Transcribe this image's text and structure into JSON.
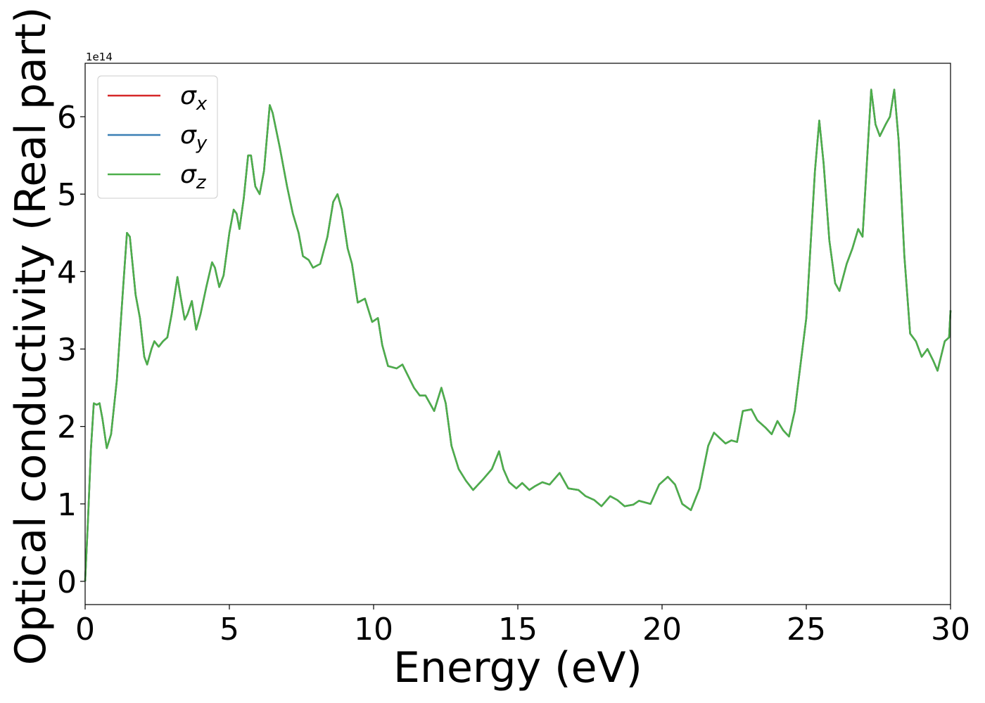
{
  "chart_data": {
    "type": "line",
    "xlabel": "Energy (eV)",
    "ylabel": "Optical conductivity (Real part)",
    "y_offset_label": "1e14",
    "xlim": [
      0,
      30
    ],
    "ylim": [
      -0.3,
      6.69
    ],
    "xticks": [
      0,
      5,
      10,
      15,
      20,
      25,
      30
    ],
    "yticks": [
      0,
      1,
      2,
      3,
      4,
      5,
      6
    ],
    "legend": "upper left",
    "x": [
      0,
      0.1,
      0.2,
      0.3,
      0.4,
      0.5,
      0.6,
      0.75,
      0.9,
      1.1,
      1.3,
      1.45,
      1.55,
      1.75,
      1.9,
      2.05,
      2.15,
      2.3,
      2.4,
      2.55,
      2.7,
      2.85,
      3.0,
      3.2,
      3.3,
      3.45,
      3.55,
      3.7,
      3.85,
      4.0,
      4.2,
      4.4,
      4.5,
      4.65,
      4.8,
      5.0,
      5.15,
      5.25,
      5.35,
      5.5,
      5.65,
      5.75,
      5.9,
      6.05,
      6.2,
      6.4,
      6.5,
      6.75,
      7.0,
      7.2,
      7.4,
      7.55,
      7.75,
      7.9,
      8.15,
      8.4,
      8.6,
      8.75,
      8.9,
      9.1,
      9.25,
      9.45,
      9.7,
      9.95,
      10.15,
      10.3,
      10.5,
      10.8,
      11.0,
      11.2,
      11.4,
      11.6,
      11.8,
      12.1,
      12.35,
      12.5,
      12.7,
      12.95,
      13.2,
      13.45,
      13.8,
      14.1,
      14.35,
      14.5,
      14.7,
      14.95,
      15.15,
      15.4,
      15.6,
      15.85,
      16.1,
      16.45,
      16.75,
      17.1,
      17.35,
      17.65,
      17.9,
      18.2,
      18.45,
      18.7,
      19.0,
      19.2,
      19.6,
      19.9,
      20.2,
      20.45,
      20.7,
      21.0,
      21.3,
      21.6,
      21.8,
      22.0,
      22.2,
      22.4,
      22.6,
      22.8,
      23.1,
      23.3,
      23.6,
      23.8,
      24.0,
      24.2,
      24.4,
      24.6,
      25.0,
      25.3,
      25.45,
      25.6,
      25.8,
      26.0,
      26.15,
      26.4,
      26.6,
      26.8,
      26.95,
      27.1,
      27.25,
      27.4,
      27.55,
      27.75,
      27.9,
      28.05,
      28.2,
      28.4,
      28.6,
      28.8,
      29.0,
      29.2,
      29.4,
      29.55,
      29.8,
      29.95,
      30.0
    ],
    "series": [
      {
        "name": "σx",
        "color": "#d62728",
        "values": [
          0,
          0.8,
          1.7,
          2.3,
          2.28,
          2.3,
          2.1,
          1.72,
          1.9,
          2.6,
          3.7,
          4.5,
          4.45,
          3.7,
          3.4,
          2.9,
          2.8,
          3.0,
          3.1,
          3.03,
          3.1,
          3.15,
          3.45,
          3.93,
          3.7,
          3.38,
          3.45,
          3.62,
          3.25,
          3.45,
          3.8,
          4.12,
          4.05,
          3.8,
          3.95,
          4.5,
          4.8,
          4.75,
          4.55,
          4.95,
          5.5,
          5.5,
          5.1,
          5.0,
          5.3,
          6.15,
          6.05,
          5.6,
          5.1,
          4.75,
          4.5,
          4.2,
          4.15,
          4.05,
          4.1,
          4.45,
          4.9,
          5.0,
          4.8,
          4.3,
          4.1,
          3.6,
          3.65,
          3.35,
          3.4,
          3.05,
          2.78,
          2.75,
          2.8,
          2.65,
          2.5,
          2.4,
          2.4,
          2.2,
          2.5,
          2.3,
          1.75,
          1.45,
          1.3,
          1.18,
          1.32,
          1.45,
          1.68,
          1.45,
          1.28,
          1.2,
          1.27,
          1.18,
          1.23,
          1.28,
          1.25,
          1.4,
          1.2,
          1.18,
          1.1,
          1.05,
          0.97,
          1.1,
          1.05,
          0.97,
          0.99,
          1.04,
          1.0,
          1.25,
          1.35,
          1.25,
          1.0,
          0.92,
          1.2,
          1.75,
          1.92,
          1.85,
          1.78,
          1.82,
          1.8,
          2.2,
          2.22,
          2.08,
          1.98,
          1.9,
          2.07,
          1.95,
          1.87,
          2.2,
          3.4,
          5.3,
          5.95,
          5.4,
          4.4,
          3.85,
          3.75,
          4.1,
          4.3,
          4.55,
          4.45,
          5.4,
          6.35,
          5.9,
          5.75,
          5.9,
          6.0,
          6.35,
          5.7,
          4.2,
          3.2,
          3.1,
          2.9,
          3.0,
          2.85,
          2.72,
          3.1,
          3.15,
          3.5
        ]
      },
      {
        "name": "σy",
        "color": "#3a7fb5",
        "values": [
          0,
          0.8,
          1.7,
          2.3,
          2.28,
          2.3,
          2.1,
          1.72,
          1.9,
          2.6,
          3.7,
          4.5,
          4.45,
          3.7,
          3.4,
          2.9,
          2.8,
          3.0,
          3.1,
          3.03,
          3.1,
          3.15,
          3.45,
          3.93,
          3.7,
          3.38,
          3.45,
          3.62,
          3.25,
          3.45,
          3.8,
          4.12,
          4.05,
          3.8,
          3.95,
          4.5,
          4.8,
          4.75,
          4.55,
          4.95,
          5.5,
          5.5,
          5.1,
          5.0,
          5.3,
          6.15,
          6.05,
          5.6,
          5.1,
          4.75,
          4.5,
          4.2,
          4.15,
          4.05,
          4.1,
          4.45,
          4.9,
          5.0,
          4.8,
          4.3,
          4.1,
          3.6,
          3.65,
          3.35,
          3.4,
          3.05,
          2.78,
          2.75,
          2.8,
          2.65,
          2.5,
          2.4,
          2.4,
          2.2,
          2.5,
          2.3,
          1.75,
          1.45,
          1.3,
          1.18,
          1.32,
          1.45,
          1.68,
          1.45,
          1.28,
          1.2,
          1.27,
          1.18,
          1.23,
          1.28,
          1.25,
          1.4,
          1.2,
          1.18,
          1.1,
          1.05,
          0.97,
          1.1,
          1.05,
          0.97,
          0.99,
          1.04,
          1.0,
          1.25,
          1.35,
          1.25,
          1.0,
          0.92,
          1.2,
          1.75,
          1.92,
          1.85,
          1.78,
          1.82,
          1.8,
          2.2,
          2.22,
          2.08,
          1.98,
          1.9,
          2.07,
          1.95,
          1.87,
          2.2,
          3.4,
          5.3,
          5.95,
          5.4,
          4.4,
          3.85,
          3.75,
          4.1,
          4.3,
          4.55,
          4.45,
          5.4,
          6.35,
          5.9,
          5.75,
          5.9,
          6.0,
          6.35,
          5.7,
          4.2,
          3.2,
          3.1,
          2.9,
          3.0,
          2.85,
          2.72,
          3.1,
          3.15,
          3.5
        ]
      },
      {
        "name": "σz",
        "color": "#4daf4a",
        "values": [
          0,
          0.8,
          1.7,
          2.3,
          2.28,
          2.3,
          2.1,
          1.72,
          1.9,
          2.6,
          3.7,
          4.5,
          4.45,
          3.7,
          3.4,
          2.9,
          2.8,
          3.0,
          3.1,
          3.03,
          3.1,
          3.15,
          3.45,
          3.93,
          3.7,
          3.38,
          3.45,
          3.62,
          3.25,
          3.45,
          3.8,
          4.12,
          4.05,
          3.8,
          3.95,
          4.5,
          4.8,
          4.75,
          4.55,
          4.95,
          5.5,
          5.5,
          5.1,
          5.0,
          5.3,
          6.15,
          6.05,
          5.6,
          5.1,
          4.75,
          4.5,
          4.2,
          4.15,
          4.05,
          4.1,
          4.45,
          4.9,
          5.0,
          4.8,
          4.3,
          4.1,
          3.6,
          3.65,
          3.35,
          3.4,
          3.05,
          2.78,
          2.75,
          2.8,
          2.65,
          2.5,
          2.4,
          2.4,
          2.2,
          2.5,
          2.3,
          1.75,
          1.45,
          1.3,
          1.18,
          1.32,
          1.45,
          1.68,
          1.45,
          1.28,
          1.2,
          1.27,
          1.18,
          1.23,
          1.28,
          1.25,
          1.4,
          1.2,
          1.18,
          1.1,
          1.05,
          0.97,
          1.1,
          1.05,
          0.97,
          0.99,
          1.04,
          1.0,
          1.25,
          1.35,
          1.25,
          1.0,
          0.92,
          1.2,
          1.75,
          1.92,
          1.85,
          1.78,
          1.82,
          1.8,
          2.2,
          2.22,
          2.08,
          1.98,
          1.9,
          2.07,
          1.95,
          1.87,
          2.2,
          3.4,
          5.3,
          5.95,
          5.4,
          4.4,
          3.85,
          3.75,
          4.1,
          4.3,
          4.55,
          4.45,
          5.4,
          6.35,
          5.9,
          5.75,
          5.9,
          6.0,
          6.35,
          5.7,
          4.2,
          3.2,
          3.1,
          2.9,
          3.0,
          2.85,
          2.72,
          3.1,
          3.15,
          3.5
        ]
      }
    ]
  }
}
